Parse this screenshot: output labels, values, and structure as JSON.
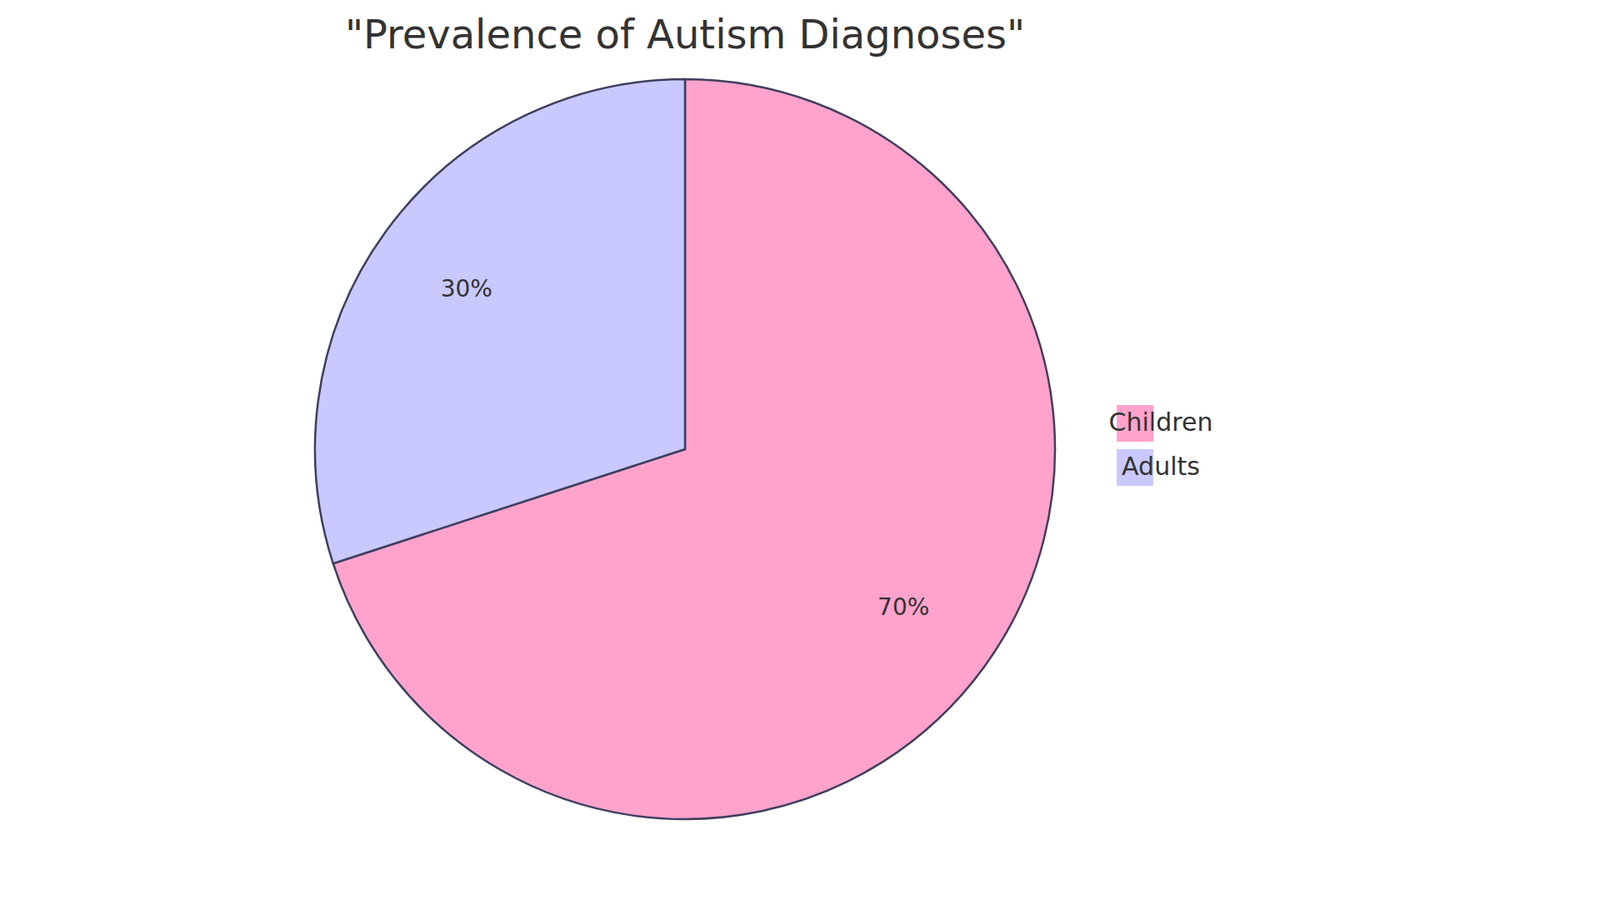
{
  "chart_data": {
    "type": "pie",
    "title": "\"Prevalence of Autism Diagnoses\"",
    "categories": [
      "Children",
      "Adults"
    ],
    "values": [
      70,
      30
    ],
    "value_labels": [
      "70%",
      "30%"
    ],
    "colors": [
      "#ffa3cc",
      "#c9c9ff"
    ],
    "data_labels": true,
    "legend": "right"
  }
}
